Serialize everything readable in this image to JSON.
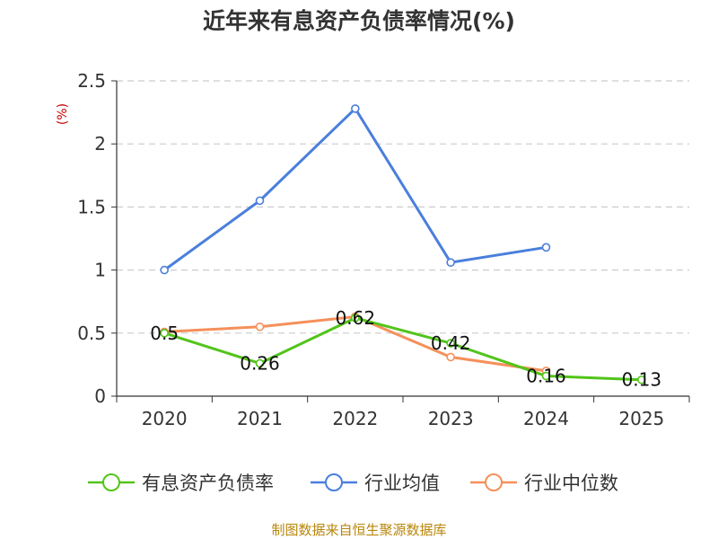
{
  "chart_data": {
    "type": "line",
    "title": "近年来有息资产负债率情况(%)",
    "ylabel": "(%)",
    "xlabel": "",
    "categories": [
      "2020",
      "2021",
      "2022",
      "2023",
      "2024",
      "2025"
    ],
    "ylim": [
      0,
      2.5
    ],
    "yticks": [
      0,
      0.5,
      1,
      1.5,
      2,
      2.5
    ],
    "ytick_labels": [
      "0",
      "0.5",
      "1",
      "1.5",
      "2",
      "2.5"
    ],
    "grid": true,
    "legend_position": "bottom",
    "series": [
      {
        "name": "有息资产负债率",
        "color": "#52c41a",
        "values": [
          0.5,
          0.26,
          0.62,
          0.42,
          0.16,
          0.13
        ],
        "labels": [
          "0.5",
          "0.26",
          "0.62",
          "0.42",
          "0.16",
          "0.13"
        ]
      },
      {
        "name": "行业均值",
        "color": "#4a7fdc",
        "values": [
          1.0,
          1.55,
          2.28,
          1.06,
          1.18,
          null
        ]
      },
      {
        "name": "行业中位数",
        "color": "#f5905a",
        "values": [
          0.51,
          0.55,
          0.63,
          0.31,
          0.2,
          null
        ]
      }
    ]
  },
  "source": "制图数据来自恒生聚源数据库"
}
